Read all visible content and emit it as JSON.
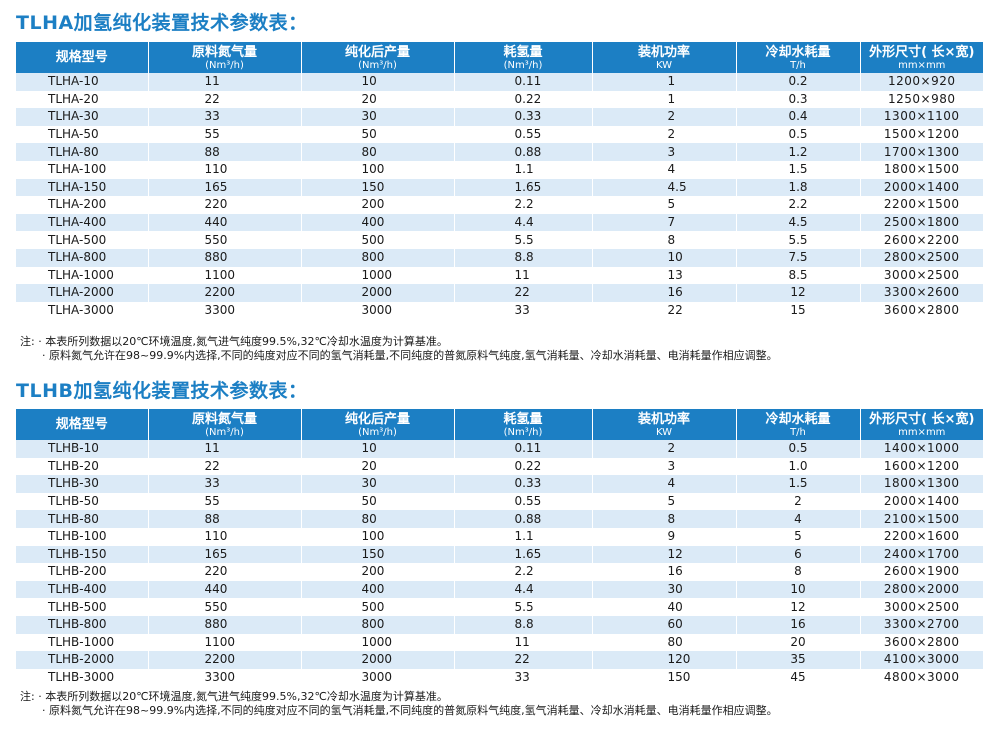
{
  "headers": [
    {
      "label": "规格型号",
      "unit": ""
    },
    {
      "label": "原料氮气量",
      "unit": "(Nm³/h)"
    },
    {
      "label": "纯化后产量",
      "unit": "(Nm³/h)"
    },
    {
      "label": "耗氢量",
      "unit": "(Nm³/h)"
    },
    {
      "label": "装机功率",
      "unit": "KW"
    },
    {
      "label": "冷却水耗量",
      "unit": "T/h"
    },
    {
      "label": "外形尺寸( 长×宽)",
      "unit": "mm×mm"
    }
  ],
  "tlha": {
    "title": "TLHA加氢纯化装置技术参数表：",
    "rows": [
      [
        "TLHA-10",
        "11",
        "10",
        "0.11",
        "1",
        "0.2",
        "1200×920"
      ],
      [
        "TLHA-20",
        "22",
        "20",
        "0.22",
        "1",
        "0.3",
        "1250×980"
      ],
      [
        "TLHA-30",
        "33",
        "30",
        "0.33",
        "2",
        "0.4",
        "1300×1100"
      ],
      [
        "TLHA-50",
        "55",
        "50",
        "0.55",
        "2",
        "0.5",
        "1500×1200"
      ],
      [
        "TLHA-80",
        "88",
        "80",
        "0.88",
        "3",
        "1.2",
        "1700×1300"
      ],
      [
        "TLHA-100",
        "110",
        "100",
        "1.1",
        "4",
        "1.5",
        "1800×1500"
      ],
      [
        "TLHA-150",
        "165",
        "150",
        "1.65",
        "4.5",
        "1.8",
        "2000×1400"
      ],
      [
        "TLHA-200",
        "220",
        "200",
        "2.2",
        "5",
        "2.2",
        "2200×1500"
      ],
      [
        "TLHA-400",
        "440",
        "400",
        "4.4",
        "7",
        "4.5",
        "2500×1800"
      ],
      [
        "TLHA-500",
        "550",
        "500",
        "5.5",
        "8",
        "5.5",
        "2600×2200"
      ],
      [
        "TLHA-800",
        "880",
        "800",
        "8.8",
        "10",
        "7.5",
        "2800×2500"
      ],
      [
        "TLHA-1000",
        "1100",
        "1000",
        "11",
        "13",
        "8.5",
        "3000×2500"
      ],
      [
        "TLHA-2000",
        "2200",
        "2000",
        "22",
        "16",
        "12",
        "3300×2600"
      ],
      [
        "TLHA-3000",
        "3300",
        "3000",
        "33",
        "22",
        "15",
        "3600×2800"
      ]
    ],
    "note1": "注: · 本表所列数据以20℃环境温度,氮气进气纯度99.5%,32℃冷却水温度为计算基准。",
    "note2": "· 原料氮气允许在98~99.9%内选择,不同的纯度对应不同的氢气消耗量,不同纯度的普氮原料气纯度,氢气消耗量、冷却水消耗量、电消耗量作相应调整。"
  },
  "tlhb": {
    "title": "TLHB加氢纯化装置技术参数表：",
    "rows": [
      [
        "TLHB-10",
        "11",
        "10",
        "0.11",
        "2",
        "0.5",
        "1400×1000"
      ],
      [
        "TLHB-20",
        "22",
        "20",
        "0.22",
        "3",
        "1.0",
        "1600×1200"
      ],
      [
        "TLHB-30",
        "33",
        "30",
        "0.33",
        "4",
        "1.5",
        "1800×1300"
      ],
      [
        "TLHB-50",
        "55",
        "50",
        "0.55",
        "5",
        "2",
        "2000×1400"
      ],
      [
        "TLHB-80",
        "88",
        "80",
        "0.88",
        "8",
        "4",
        "2100×1500"
      ],
      [
        "TLHB-100",
        "110",
        "100",
        "1.1",
        "9",
        "5",
        "2200×1600"
      ],
      [
        "TLHB-150",
        "165",
        "150",
        "1.65",
        "12",
        "6",
        "2400×1700"
      ],
      [
        "TLHB-200",
        "220",
        "200",
        "2.2",
        "16",
        "8",
        "2600×1900"
      ],
      [
        "TLHB-400",
        "440",
        "400",
        "4.4",
        "30",
        "10",
        "2800×2000"
      ],
      [
        "TLHB-500",
        "550",
        "500",
        "5.5",
        "40",
        "12",
        "3000×2500"
      ],
      [
        "TLHB-800",
        "880",
        "800",
        "8.8",
        "60",
        "16",
        "3300×2700"
      ],
      [
        "TLHB-1000",
        "1100",
        "1000",
        "11",
        "80",
        "20",
        "3600×2800"
      ],
      [
        "TLHB-2000",
        "2200",
        "2000",
        "22",
        "120",
        "35",
        "4100×3000"
      ],
      [
        "TLHB-3000",
        "3300",
        "3000",
        "33",
        "150",
        "45",
        "4800×3000"
      ]
    ],
    "note1": "注: · 本表所列数据以20℃环境温度,氮气进气纯度99.5%,32℃冷却水温度为计算基准。",
    "note2": "· 原料氮气允许在98~99.9%内选择,不同的纯度对应不同的氢气消耗量,不同纯度的普氮原料气纯度,氢气消耗量、冷却水消耗量、电消耗量作相应调整。"
  },
  "colors": {
    "accent": "#1c7fc4",
    "stripe": "#dbeaf7"
  }
}
